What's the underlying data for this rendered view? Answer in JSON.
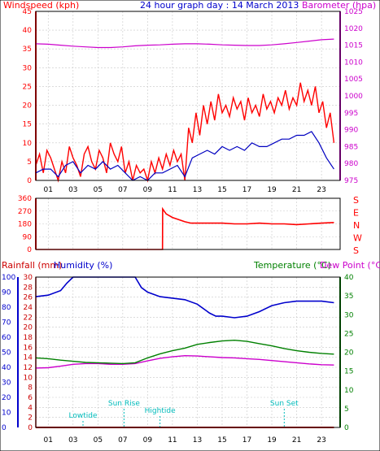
{
  "colors": {
    "wind": "#ff0000",
    "wind_avg": "#0000c0",
    "barometer": "#cc00cc",
    "direction": "#ff0000",
    "rainfall": "#cc0000",
    "humidity": "#0000cc",
    "temperature": "#008000",
    "dew_point": "#cc00cc",
    "annotation": "#00bbbb",
    "frame": "#000000"
  },
  "header": {
    "wind_label": "Windspeed (kph)",
    "title": "24 hour graph day : 14 March 2013",
    "baro_label": "Barometer (hpa)"
  },
  "bottom_header": {
    "rain_label": "Rainfall (mm)",
    "humidity_label": "Humidity (%)",
    "temp_label": "Temperature (°C)",
    "dew_label": "Dew Point (°C)"
  },
  "x_ticks": [
    "01",
    "03",
    "05",
    "07",
    "09",
    "11",
    "13",
    "15",
    "17",
    "19",
    "21",
    "23"
  ],
  "annotations": [
    {
      "label": "Lowtide",
      "x": 3.8
    },
    {
      "label": "Sun Rise",
      "x": 7.1
    },
    {
      "label": "Hightide",
      "x": 10.0
    },
    {
      "label": "Sun Set",
      "x": 20.0
    }
  ],
  "chart_data": [
    {
      "type": "line",
      "title": "24 hour graph day : 14 March 2013",
      "xlabel": "",
      "ylabel": "Windspeed (kph)",
      "y2label": "Barometer (hpa)",
      "xlim": [
        0,
        24.5
      ],
      "ylim": [
        0,
        45
      ],
      "y2lim": [
        975,
        1025
      ],
      "yticks": [
        0,
        5,
        10,
        15,
        20,
        25,
        30,
        35,
        40,
        45
      ],
      "y2ticks": [
        975,
        980,
        985,
        990,
        995,
        1000,
        1005,
        1010,
        1015,
        1020,
        1025
      ],
      "grid": true,
      "series": [
        {
          "name": "Windspeed (kph)",
          "axis": "left",
          "role": "gust",
          "x": [
            0,
            0.3,
            0.6,
            0.9,
            1.2,
            1.5,
            1.8,
            2.1,
            2.4,
            2.7,
            3.0,
            3.3,
            3.6,
            3.9,
            4.2,
            4.5,
            4.8,
            5.1,
            5.4,
            5.7,
            6.0,
            6.3,
            6.6,
            6.9,
            7.2,
            7.5,
            7.8,
            8.1,
            8.4,
            8.7,
            9.0,
            9.3,
            9.6,
            9.9,
            10.2,
            10.5,
            10.8,
            11.1,
            11.4,
            11.7,
            12.0,
            12.3,
            12.6,
            12.9,
            13.2,
            13.5,
            13.8,
            14.1,
            14.4,
            14.7,
            15.0,
            15.3,
            15.6,
            15.9,
            16.2,
            16.5,
            16.8,
            17.1,
            17.4,
            17.7,
            18.0,
            18.3,
            18.6,
            18.9,
            19.2,
            19.5,
            19.8,
            20.1,
            20.4,
            20.7,
            21.0,
            21.3,
            21.6,
            21.9,
            22.2,
            22.5,
            22.8,
            23.1,
            23.4,
            23.7,
            24.0
          ],
          "values": [
            4,
            7,
            2,
            8,
            6,
            3,
            0,
            5,
            2,
            9,
            6,
            4,
            1,
            7,
            9,
            5,
            3,
            8,
            6,
            2,
            10,
            7,
            5,
            9,
            2,
            5,
            0,
            4,
            2,
            3,
            0,
            5,
            2,
            6,
            3,
            7,
            4,
            8,
            5,
            7,
            0,
            14,
            10,
            18,
            12,
            20,
            15,
            21,
            16,
            23,
            18,
            20,
            17,
            22,
            19,
            21,
            16,
            22,
            18,
            20,
            17,
            23,
            19,
            21,
            18,
            22,
            20,
            24,
            19,
            22,
            20,
            26,
            21,
            24,
            20,
            25,
            18,
            21,
            14,
            18,
            10
          ]
        },
        {
          "name": "Windspeed (kph)",
          "axis": "left",
          "role": "average",
          "x": [
            0,
            0.6,
            1.2,
            1.8,
            2.4,
            3.0,
            3.6,
            4.2,
            4.8,
            5.4,
            6.0,
            6.6,
            7.2,
            7.8,
            8.4,
            9.0,
            9.6,
            10.2,
            10.8,
            11.4,
            12.0,
            12.6,
            13.2,
            13.8,
            14.4,
            15.0,
            15.6,
            16.2,
            16.8,
            17.4,
            18.0,
            18.6,
            19.2,
            19.8,
            20.4,
            21.0,
            21.6,
            22.2,
            22.8,
            23.4,
            24.0
          ],
          "values": [
            2,
            3,
            3,
            1,
            4,
            5,
            2,
            4,
            3,
            5,
            3,
            4,
            2,
            0,
            1,
            0,
            2,
            2,
            3,
            4,
            1,
            6,
            7,
            8,
            7,
            9,
            8,
            9,
            8,
            10,
            9,
            9,
            10,
            11,
            11,
            12,
            12,
            13,
            10,
            6,
            3
          ]
        },
        {
          "name": "Barometer (hpa)",
          "axis": "right",
          "x": [
            0,
            1,
            2,
            3,
            4,
            5,
            6,
            7,
            8,
            9,
            10,
            11,
            12,
            13,
            14,
            15,
            16,
            17,
            18,
            19,
            20,
            21,
            22,
            23,
            24
          ],
          "values": [
            1015.4,
            1015.3,
            1015.0,
            1014.7,
            1014.5,
            1014.3,
            1014.3,
            1014.5,
            1014.8,
            1015.0,
            1015.1,
            1015.3,
            1015.4,
            1015.4,
            1015.3,
            1015.1,
            1015.0,
            1014.9,
            1014.9,
            1015.1,
            1015.4,
            1015.8,
            1016.2,
            1016.6,
            1016.8
          ]
        }
      ]
    },
    {
      "type": "line",
      "ylabel": "",
      "y2label": "N E S W S",
      "xlim": [
        0,
        24.5
      ],
      "ylim": [
        0,
        360
      ],
      "yticks": [
        0,
        90,
        180,
        270,
        360
      ],
      "compass": [
        "S",
        "E",
        "N",
        "W",
        "S"
      ],
      "grid": true,
      "series": [
        {
          "name": "Wind direction",
          "x": [
            0,
            1,
            2,
            3,
            4,
            5,
            6,
            7,
            8,
            9,
            10.2,
            10.21,
            10.5,
            11,
            11.5,
            12,
            12.5,
            13,
            14,
            15,
            16,
            17,
            18,
            19,
            20,
            21,
            22,
            23,
            24
          ],
          "values": [
            0,
            0,
            0,
            0,
            0,
            0,
            0,
            0,
            0,
            0,
            0,
            285,
            250,
            225,
            210,
            195,
            185,
            185,
            185,
            185,
            180,
            180,
            185,
            180,
            180,
            175,
            180,
            185,
            190
          ]
        }
      ]
    },
    {
      "type": "line",
      "ylabel": "Humidity (%)",
      "y2label": "Temperature (°C)",
      "xlim": [
        0,
        24.5
      ],
      "ylim_humidity": [
        0,
        100
      ],
      "yticks_humidity": [
        0,
        10,
        20,
        30,
        40,
        50,
        60,
        70,
        80,
        90,
        100
      ],
      "ylim_rain": [
        0,
        30
      ],
      "yticks_rain": [
        0,
        2,
        4,
        6,
        8,
        10,
        12,
        14,
        16,
        18,
        20,
        22,
        24,
        26,
        28,
        30
      ],
      "ylim_temp": [
        0,
        40
      ],
      "yticks_temp": [
        0,
        5,
        10,
        15,
        20,
        25,
        30,
        35,
        40
      ],
      "grid": true,
      "series": [
        {
          "name": "Humidity (%)",
          "axis": "humidity",
          "x": [
            0,
            1,
            2,
            2.5,
            3,
            4,
            5,
            6,
            7,
            8,
            8.5,
            9,
            10,
            11,
            12,
            13,
            14,
            14.5,
            15,
            16,
            17,
            18,
            19,
            20,
            21,
            22,
            23,
            24
          ],
          "values": [
            87,
            88,
            91,
            96,
            100,
            100,
            100,
            100,
            100,
            100,
            93,
            90,
            87,
            86,
            85,
            82,
            76,
            74,
            74,
            73,
            74,
            77,
            81,
            83,
            84,
            84,
            84,
            83
          ]
        },
        {
          "name": "Temperature (°C)",
          "axis": "temp",
          "x": [
            0,
            1,
            2,
            3,
            4,
            5,
            6,
            7,
            8,
            9,
            10,
            11,
            12,
            13,
            14,
            15,
            16,
            17,
            18,
            19,
            20,
            21,
            22,
            23,
            24
          ],
          "values": [
            18.5,
            18.3,
            17.9,
            17.6,
            17.3,
            17.2,
            17.1,
            17.0,
            17.2,
            18.5,
            19.6,
            20.4,
            21.1,
            22.1,
            22.6,
            23.0,
            23.2,
            22.9,
            22.3,
            21.7,
            21.0,
            20.4,
            20.0,
            19.7,
            19.5
          ]
        },
        {
          "name": "Dew Point (°C)",
          "axis": "temp",
          "x": [
            0,
            1,
            2,
            3,
            4,
            5,
            6,
            7,
            8,
            9,
            10,
            11,
            12,
            13,
            14,
            15,
            16,
            17,
            18,
            19,
            20,
            21,
            22,
            23,
            24
          ],
          "values": [
            15.8,
            15.9,
            16.3,
            16.8,
            17.0,
            17.0,
            16.8,
            16.8,
            17.0,
            17.7,
            18.4,
            18.8,
            19.1,
            19.0,
            18.8,
            18.6,
            18.5,
            18.3,
            18.1,
            17.8,
            17.5,
            17.2,
            16.9,
            16.7,
            16.6
          ]
        },
        {
          "name": "Rainfall (mm)",
          "axis": "rain",
          "x": [
            0,
            24
          ],
          "values": [
            0,
            0
          ]
        }
      ]
    }
  ]
}
